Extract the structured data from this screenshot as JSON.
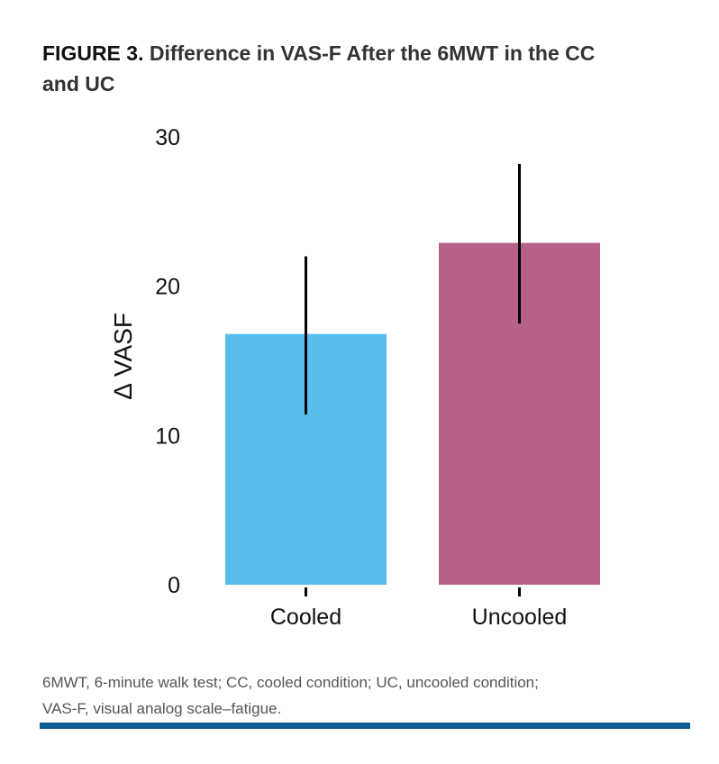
{
  "figure": {
    "label": "FIGURE 3.",
    "title": "Difference in VAS-F After the 6MWT in the CC and UC"
  },
  "caption": {
    "line1": "6MWT, 6-minute walk test; CC, cooled condition; UC, uncooled condition;",
    "line2": "VAS-F, visual analog scale–fatigue."
  },
  "colors": {
    "cooled": "#58bdeb",
    "uncooled": "#b76188",
    "rule": "#0b5c95",
    "error_bar": "#000000"
  },
  "chart_data": {
    "type": "bar",
    "categories": [
      "Cooled",
      "Uncooled"
    ],
    "values": [
      16.8,
      22.9
    ],
    "error_low": [
      11.4,
      17.5
    ],
    "error_high": [
      22.0,
      28.2
    ],
    "title": "",
    "xlabel": "",
    "ylabel": "∆ VASF",
    "ylim": [
      0,
      30
    ],
    "yticks": [
      0,
      10,
      20,
      30
    ],
    "grid": false
  }
}
